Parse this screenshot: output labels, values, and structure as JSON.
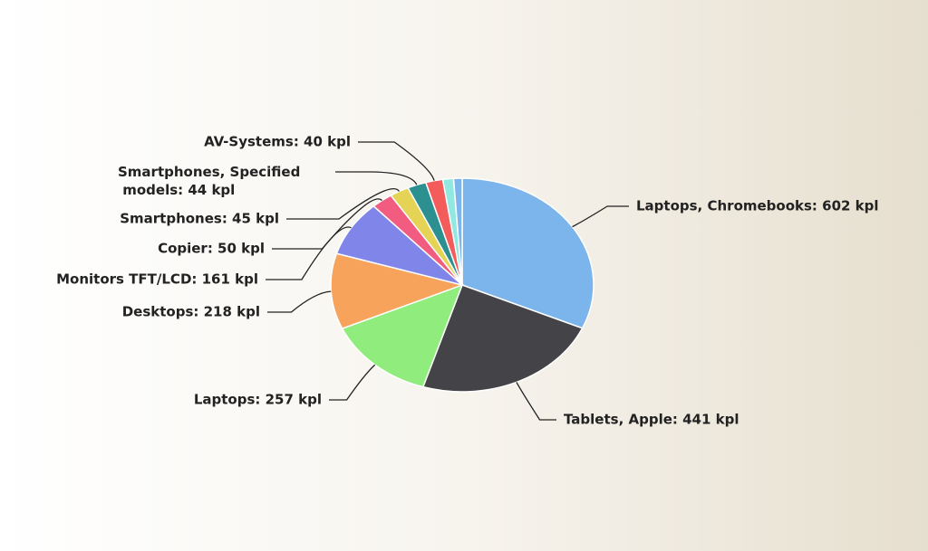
{
  "chart_data": {
    "type": "pie",
    "labels": [
      "Laptops, Chromebooks: 602 kpl",
      "Tablets, Apple: 441 kpl",
      "Laptops: 257 kpl",
      "Desktops: 218 kpl",
      "Monitors TFT/LCD: 161 kpl",
      "Copier: 50 kpl",
      "Smartphones: 45 kpl",
      "Smartphones, Specified models: 44 kpl",
      "AV-Systems: 40 kpl",
      null,
      null
    ],
    "values": [
      602,
      441,
      257,
      218,
      161,
      50,
      45,
      44,
      40,
      25,
      20
    ],
    "colors": [
      "#7cb5ec",
      "#434348",
      "#90ed7d",
      "#f7a35c",
      "#8085e9",
      "#f15c80",
      "#e4d354",
      "#2b908f",
      "#f45b5b",
      "#91e8e1",
      "#7cb5ec"
    ]
  }
}
